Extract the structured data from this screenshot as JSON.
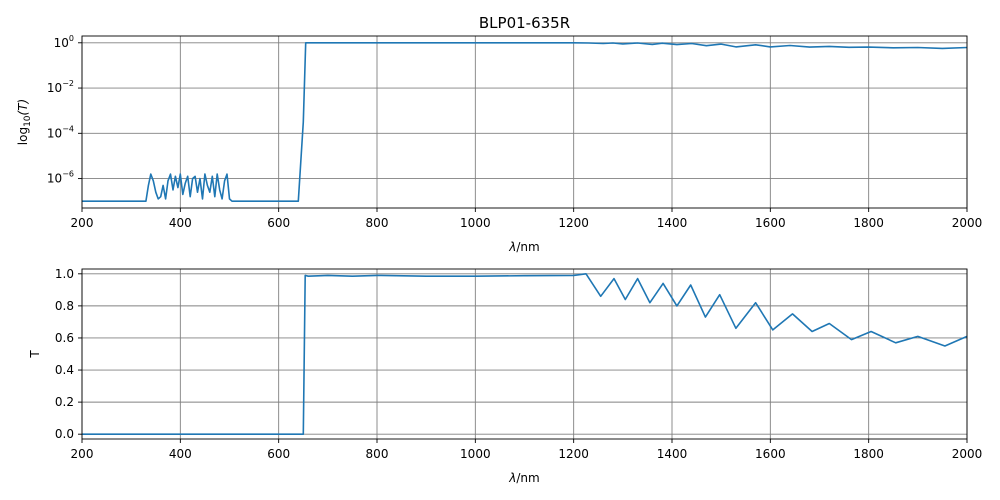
{
  "chart_data": [
    {
      "type": "line",
      "title": "BLP01-635R",
      "xlabel_var": "λ",
      "xlabel_unit": "/nm",
      "ylabel_prefix": "log",
      "ylabel_sub": "10",
      "ylabel_arg": "(T)",
      "xlim": [
        200,
        2000
      ],
      "ylog": true,
      "ylim_log10": [
        -7.3,
        0.3
      ],
      "grid": true,
      "color": "#1f77b4",
      "x_ticks": [
        "200",
        "400",
        "600",
        "800",
        "1000",
        "1200",
        "1400",
        "1600",
        "2000"
      ],
      "x_tick_values": [
        200,
        400,
        600,
        800,
        1000,
        1200,
        1400,
        1600,
        2000
      ],
      "x_ticks_extra": {
        "value": 1800,
        "label": "1800"
      },
      "y_ticks": [
        {
          "exp": 0,
          "base": "10",
          "sup": "0"
        },
        {
          "exp": -2,
          "base": "10",
          "sup": "−2"
        },
        {
          "exp": -4,
          "base": "10",
          "sup": "−4"
        },
        {
          "exp": -6,
          "base": "10",
          "sup": "−6"
        }
      ],
      "series": [
        {
          "x": [
            200,
            330,
            335,
            340,
            345,
            350,
            355,
            360,
            365,
            370,
            375,
            380,
            385,
            390,
            395,
            400,
            405,
            410,
            415,
            420,
            425,
            430,
            435,
            440,
            445,
            450,
            455,
            460,
            465,
            470,
            475,
            480,
            485,
            490,
            495,
            500,
            505,
            640,
            650,
            655,
            800,
            1000,
            1200,
            1230,
            1260,
            1280,
            1300,
            1330,
            1360,
            1380,
            1410,
            1440,
            1470,
            1500,
            1530,
            1570,
            1600,
            1640,
            1680,
            1720,
            1760,
            1800,
            1850,
            1900,
            1950,
            2000
          ],
          "log10_y": [
            -7.0,
            -7.0,
            -6.3,
            -5.8,
            -6.1,
            -6.6,
            -6.9,
            -6.8,
            -6.3,
            -6.9,
            -6.1,
            -5.8,
            -6.5,
            -5.9,
            -6.4,
            -5.8,
            -6.7,
            -6.2,
            -5.9,
            -6.8,
            -6.0,
            -5.9,
            -6.6,
            -6.0,
            -6.9,
            -5.8,
            -6.3,
            -6.6,
            -5.9,
            -6.8,
            -5.8,
            -6.5,
            -6.9,
            -6.1,
            -5.8,
            -6.9,
            -7.0,
            -7.0,
            -3.5,
            0.0,
            0.0,
            0.0,
            0.0,
            -0.01,
            -0.03,
            -0.01,
            -0.05,
            -0.01,
            -0.07,
            -0.02,
            -0.08,
            -0.03,
            -0.13,
            -0.06,
            -0.18,
            -0.09,
            -0.18,
            -0.12,
            -0.19,
            -0.16,
            -0.2,
            -0.19,
            -0.22,
            -0.21,
            -0.25,
            -0.21
          ]
        }
      ]
    },
    {
      "type": "line",
      "xlabel_var": "λ",
      "xlabel_unit": "/nm",
      "ylabel": "T",
      "xlim": [
        200,
        2000
      ],
      "ylim": [
        -0.03,
        1.03
      ],
      "grid": true,
      "color": "#1f77b4",
      "x_ticks": [
        "200",
        "400",
        "600",
        "800",
        "1000",
        "1200",
        "1400",
        "1600",
        "1800",
        "2000"
      ],
      "x_tick_values": [
        200,
        400,
        600,
        800,
        1000,
        1200,
        1400,
        1600,
        1800,
        2000
      ],
      "y_ticks": [
        "0.0",
        "0.2",
        "0.4",
        "0.6",
        "0.8",
        "1.0"
      ],
      "y_tick_values": [
        0,
        0.2,
        0.4,
        0.6,
        0.8,
        1.0
      ],
      "series": [
        {
          "x": [
            200,
            650,
            654,
            660,
            700,
            750,
            800,
            900,
            1000,
            1100,
            1200,
            1225,
            1255,
            1282,
            1305,
            1330,
            1355,
            1382,
            1410,
            1438,
            1468,
            1497,
            1530,
            1570,
            1605,
            1645,
            1685,
            1720,
            1765,
            1805,
            1855,
            1900,
            1955,
            2000
          ],
          "y": [
            0.0,
            0.0,
            0.99,
            0.985,
            0.99,
            0.985,
            0.99,
            0.985,
            0.985,
            0.988,
            0.99,
            1.0,
            0.86,
            0.97,
            0.84,
            0.97,
            0.82,
            0.94,
            0.8,
            0.93,
            0.73,
            0.87,
            0.66,
            0.82,
            0.65,
            0.75,
            0.64,
            0.69,
            0.59,
            0.64,
            0.57,
            0.61,
            0.55,
            0.61
          ]
        }
      ]
    }
  ]
}
